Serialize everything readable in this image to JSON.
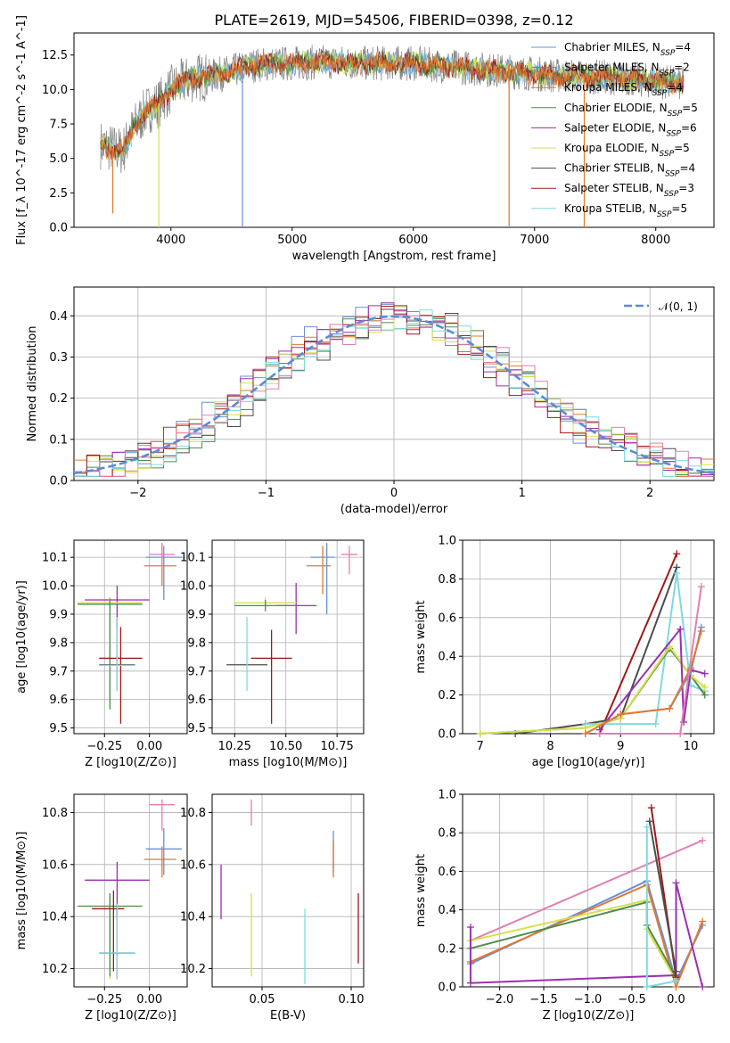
{
  "title": "PLATE=2619, MJD=54506, FIBERID=0398, z=0.12",
  "colors": {
    "chabrier_miles": "#6a8fd8",
    "salpeter_miles": "#808080",
    "kroupa_miles": "#e07a2e",
    "chabrier_elodie": "#4f8c4f",
    "salpeter_elodie": "#9b2fb0",
    "kroupa_elodie": "#d6e04a",
    "chabrier_stelib": "#4d4d4d",
    "salpeter_stelib": "#a01818",
    "kroupa_stelib": "#7ddbe0",
    "pink": "#e080b0",
    "gauss": "#5b8bd6"
  },
  "legend": [
    {
      "label": "Chabrier MILES, N_SSP=4",
      "color_key": "chabrier_miles"
    },
    {
      "label": "Salpeter MILES, N_SSP=2",
      "color_key": "salpeter_miles"
    },
    {
      "label": "Kroupa MILES, N_SSP=4",
      "color_key": "kroupa_miles"
    },
    {
      "label": "Chabrier ELODIE, N_SSP=5",
      "color_key": "chabrier_elodie"
    },
    {
      "label": "Salpeter ELODIE, N_SSP=6",
      "color_key": "salpeter_elodie"
    },
    {
      "label": "Kroupa ELODIE, N_SSP=5",
      "color_key": "kroupa_elodie"
    },
    {
      "label": "Chabrier STELIB, N_SSP=4",
      "color_key": "chabrier_stelib"
    },
    {
      "label": "Salpeter STELIB, N_SSP=3",
      "color_key": "salpeter_stelib"
    },
    {
      "label": "Kroupa STELIB, N_SSP=5",
      "color_key": "kroupa_stelib"
    }
  ],
  "chart_data": [
    {
      "id": "spectrum",
      "type": "line",
      "title": "PLATE=2619, MJD=54506, FIBERID=0398, z=0.12",
      "xlabel": "wavelength [Angstrom, rest frame]",
      "ylabel": "Flux [f_λ 10^-17 erg cm^-2 s^-1 A^-1]",
      "xlim": [
        3200,
        8480
      ],
      "ylim": [
        0,
        14.1
      ],
      "xticks": [
        4000,
        5000,
        6000,
        7000,
        8000
      ],
      "yticks": [
        0.0,
        2.5,
        5.0,
        7.5,
        10.0,
        12.5
      ],
      "continuum": {
        "x": [
          3420,
          3600,
          3700,
          3800,
          3900,
          4000,
          4100,
          4200,
          4300,
          4500,
          4700,
          5000,
          5300,
          5600,
          6000,
          6400,
          6800,
          7200,
          7600,
          8000,
          8230
        ],
        "y": [
          6.0,
          5.5,
          7.3,
          8.5,
          9.0,
          10.0,
          10.5,
          10.9,
          10.9,
          11.3,
          11.8,
          11.9,
          12.0,
          11.9,
          11.9,
          11.6,
          11.3,
          11.0,
          10.9,
          10.6,
          10.4
        ]
      },
      "spikes": [
        {
          "x": 3520,
          "y": 1.0
        },
        {
          "x": 3900,
          "y": 0.0
        },
        {
          "x": 4590,
          "y": 0.0
        },
        {
          "x": 6790,
          "y": 0.0
        },
        {
          "x": 7410,
          "y": 0.0
        }
      ]
    },
    {
      "id": "residuals",
      "type": "step",
      "xlabel": "(data-model)/error",
      "ylabel": "Normed distribution",
      "xlim": [
        -2.5,
        2.5
      ],
      "ylim": [
        0,
        0.47
      ],
      "xticks": [
        -2,
        -1,
        0,
        1,
        2
      ],
      "yticks": [
        0.0,
        0.1,
        0.2,
        0.3,
        0.4
      ],
      "gaussian_label": "𝒩(0, 1)",
      "bin_edges_range": [
        -2.5,
        2.5
      ],
      "bins": 50
    },
    {
      "id": "age_vs_Z",
      "type": "errorbar",
      "xlabel": "Z [log10(Z/Z⊙)]",
      "ylabel": "age  [log10(age/yr)]",
      "xlim": [
        -0.42,
        0.21
      ],
      "ylim": [
        9.48,
        10.16
      ],
      "xticks": [
        -0.25,
        0.0
      ],
      "xticklabels": [
        "−0.25",
        "0.00"
      ],
      "yticks": [
        9.5,
        9.6,
        9.7,
        9.8,
        9.9,
        10.0,
        10.1
      ],
      "points": [
        {
          "color_key": "chabrier_miles",
          "x": 0.08,
          "xerr": [
            0.1,
            0.1
          ],
          "y": 10.1,
          "yerr": [
            0.15,
            0.04
          ]
        },
        {
          "color_key": "kroupa_miles",
          "x": 0.07,
          "xerr": [
            0.1,
            0.08
          ],
          "y": 10.07,
          "yerr": [
            0.07,
            0.08
          ]
        },
        {
          "color_key": "pink",
          "x": 0.07,
          "xerr": [
            0.07,
            0.07
          ],
          "y": 10.11,
          "yerr": [
            0.05,
            0.04
          ]
        },
        {
          "color_key": "salpeter_elodie",
          "x": -0.18,
          "xerr": [
            0.18,
            0.18
          ],
          "y": 9.95,
          "yerr": [
            0.1,
            0.05
          ]
        },
        {
          "color_key": "kroupa_elodie",
          "x": -0.22,
          "xerr": [
            0.18,
            0.18
          ],
          "y": 9.94,
          "yerr": [
            0.34,
            0.02
          ]
        },
        {
          "color_key": "chabrier_elodie",
          "x": -0.22,
          "xerr": [
            0.18,
            0.18
          ],
          "y": 9.935,
          "yerr": [
            0.37,
            0.02
          ]
        },
        {
          "color_key": "salpeter_stelib",
          "x": -0.16,
          "xerr": [
            0.12,
            0.12
          ],
          "y": 9.745,
          "yerr": [
            0.23,
            0.11
          ]
        },
        {
          "color_key": "chabrier_stelib",
          "x": -0.18,
          "xerr": [
            0.1,
            0.1
          ],
          "y": 9.722,
          "yerr": [
            0.09,
            0.17
          ]
        },
        {
          "color_key": "kroupa_stelib",
          "x": -0.18,
          "xerr": [
            0.1,
            0.1
          ],
          "y": 9.72,
          "yerr": [
            0.09,
            0.17
          ]
        }
      ]
    },
    {
      "id": "age_vs_mass",
      "type": "errorbar",
      "xlabel": "mass [log10(M/M⊙)]",
      "ylabel": "",
      "xlim": [
        10.14,
        10.88
      ],
      "ylim": [
        9.48,
        10.16
      ],
      "xticks": [
        10.25,
        10.5,
        10.75
      ],
      "xticklabels": [
        "10.25",
        "10.50",
        "10.75"
      ],
      "yticks": [
        9.5,
        9.6,
        9.7,
        9.8,
        9.9,
        10.0,
        10.1
      ],
      "points": [
        {
          "color_key": "chabrier_miles",
          "x": 10.7,
          "xerr": [
            0.08,
            0.04
          ],
          "y": 10.1,
          "yerr": [
            0.2,
            0.05
          ]
        },
        {
          "color_key": "kroupa_miles",
          "x": 10.68,
          "xerr": [
            0.08,
            0.04
          ],
          "y": 10.07,
          "yerr": [
            0.1,
            0.07
          ]
        },
        {
          "color_key": "pink",
          "x": 10.81,
          "xerr": [
            0.04,
            0.04
          ],
          "y": 10.11,
          "yerr": [
            0.07,
            0.03
          ]
        },
        {
          "color_key": "salpeter_elodie",
          "x": 10.55,
          "xerr": [
            0.1,
            0.1
          ],
          "y": 9.93,
          "yerr": [
            0.1,
            0.08
          ]
        },
        {
          "color_key": "kroupa_elodie",
          "x": 10.4,
          "xerr": [
            0.15,
            0.15
          ],
          "y": 9.94,
          "yerr": [
            0.02,
            0.02
          ]
        },
        {
          "color_key": "chabrier_elodie",
          "x": 10.4,
          "xerr": [
            0.15,
            0.15
          ],
          "y": 9.93,
          "yerr": [
            0.02,
            0.02
          ]
        },
        {
          "color_key": "salpeter_stelib",
          "x": 10.43,
          "xerr": [
            0.1,
            0.1
          ],
          "y": 9.745,
          "yerr": [
            0.23,
            0.1
          ]
        },
        {
          "color_key": "chabrier_stelib",
          "x": 10.31,
          "xerr": [
            0.1,
            0.1
          ],
          "y": 9.722,
          "yerr": [
            0.0,
            0.0
          ]
        },
        {
          "color_key": "kroupa_stelib",
          "x": 10.31,
          "xerr": [
            0.0,
            0.0
          ],
          "y": 9.72,
          "yerr": [
            0.09,
            0.17
          ]
        },
        {
          "color_key": "salpeter_stelib",
          "x": 10.44,
          "xerr": [
            0.0,
            0.0
          ],
          "y": 9.75,
          "yerr": [
            0.0,
            0.0
          ]
        }
      ]
    },
    {
      "id": "mass_weight_vs_age",
      "type": "line",
      "xlabel": "age  [log10(age/yr)]",
      "ylabel": "mass weight",
      "xlim": [
        6.75,
        10.33
      ],
      "ylim": [
        0,
        1.0
      ],
      "xticks": [
        7,
        8,
        9,
        10
      ],
      "yticks": [
        0.0,
        0.2,
        0.4,
        0.6,
        0.8,
        1.0
      ],
      "series": [
        {
          "color_key": "salpeter_stelib",
          "x": [
            8.7,
            9.8
          ],
          "y": [
            0.0,
            0.93
          ]
        },
        {
          "color_key": "chabrier_stelib",
          "x": [
            7.5,
            8.5,
            9.0,
            9.8
          ],
          "y": [
            0.0,
            0.05,
            0.08,
            0.86
          ]
        },
        {
          "color_key": "kroupa_stelib",
          "x": [
            8.5,
            9.5,
            9.8,
            10.0,
            10.2
          ],
          "y": [
            0.05,
            0.05,
            0.83,
            0.25,
            0.22
          ]
        },
        {
          "color_key": "chabrier_elodie",
          "x": [
            7.0,
            8.5,
            9.0,
            9.7,
            10.0,
            10.2
          ],
          "y": [
            0.0,
            0.03,
            0.08,
            0.44,
            0.3,
            0.2
          ]
        },
        {
          "color_key": "kroupa_elodie",
          "x": [
            7.0,
            8.5,
            9.0,
            9.7,
            10.0,
            10.2
          ],
          "y": [
            0.0,
            0.03,
            0.08,
            0.45,
            0.3,
            0.24
          ]
        },
        {
          "color_key": "salpeter_elodie",
          "x": [
            8.7,
            9.85,
            9.9,
            10.0,
            10.2
          ],
          "y": [
            0.02,
            0.54,
            0.06,
            0.33,
            0.31
          ]
        },
        {
          "color_key": "chabrier_miles",
          "x": [
            8.5,
            9.0,
            9.7,
            10.0,
            10.15
          ],
          "y": [
            0.0,
            0.1,
            0.13,
            0.32,
            0.55
          ]
        },
        {
          "color_key": "kroupa_miles",
          "x": [
            8.5,
            9.0,
            9.7,
            10.0,
            10.15
          ],
          "y": [
            0.0,
            0.1,
            0.13,
            0.34,
            0.53
          ]
        },
        {
          "color_key": "pink",
          "x": [
            8.7,
            9.85,
            10.15
          ],
          "y": [
            0.0,
            0.0,
            0.76
          ]
        }
      ]
    },
    {
      "id": "mass_vs_Z",
      "type": "errorbar",
      "xlabel": "Z [log10(Z/Z⊙)]",
      "ylabel": "mass [log10(M/M⊙)]",
      "xlim": [
        -0.42,
        0.21
      ],
      "ylim": [
        10.13,
        10.87
      ],
      "xticks": [
        -0.25,
        0.0
      ],
      "xticklabels": [
        "−0.25",
        "0.00"
      ],
      "yticks": [
        10.2,
        10.4,
        10.6,
        10.8
      ],
      "points": [
        {
          "color_key": "pink",
          "x": 0.07,
          "xerr": [
            0.07,
            0.07
          ],
          "y": 10.83,
          "yerr": [
            0.1,
            0.02
          ]
        },
        {
          "color_key": "chabrier_miles",
          "x": 0.08,
          "xerr": [
            0.1,
            0.1
          ],
          "y": 10.66,
          "yerr": [
            0.1,
            0.08
          ]
        },
        {
          "color_key": "kroupa_miles",
          "x": 0.07,
          "xerr": [
            0.1,
            0.08
          ],
          "y": 10.62,
          "yerr": [
            0.07,
            0.05
          ]
        },
        {
          "color_key": "salpeter_elodie",
          "x": -0.18,
          "xerr": [
            0.18,
            0.18
          ],
          "y": 10.54,
          "yerr": [
            0.14,
            0.07
          ]
        },
        {
          "color_key": "kroupa_elodie",
          "x": -0.22,
          "xerr": [
            0.18,
            0.18
          ],
          "y": 10.44,
          "yerr": [
            0.28,
            0.05
          ]
        },
        {
          "color_key": "chabrier_elodie",
          "x": -0.22,
          "xerr": [
            0.18,
            0.18
          ],
          "y": 10.44,
          "yerr": [
            0.27,
            0.05
          ]
        },
        {
          "color_key": "salpeter_stelib",
          "x": -0.2,
          "xerr": [
            0.12,
            0.06
          ],
          "y": 10.43,
          "yerr": [
            0.24,
            0.07
          ]
        },
        {
          "color_key": "chabrier_stelib",
          "x": -0.18,
          "xerr": [
            0.1,
            0.1
          ],
          "y": 10.26,
          "yerr": [
            0.1,
            0.19
          ]
        },
        {
          "color_key": "kroupa_stelib",
          "x": -0.18,
          "xerr": [
            0.1,
            0.1
          ],
          "y": 10.26,
          "yerr": [
            0.1,
            0.19
          ]
        }
      ]
    },
    {
      "id": "mass_vs_EBV",
      "type": "errorbar",
      "xlabel": "E(B-V)",
      "ylabel": "",
      "xlim": [
        0.022,
        0.107
      ],
      "ylim": [
        10.13,
        10.87
      ],
      "xticks": [
        0.05,
        0.1
      ],
      "xticklabels": [
        "0.05",
        "0.10"
      ],
      "yticks": [
        10.2,
        10.4,
        10.6,
        10.8
      ],
      "points": [
        {
          "color_key": "pink",
          "x": 0.044,
          "xerr": [
            0,
            0
          ],
          "y": 10.8,
          "yerr": [
            0.05,
            0.05
          ]
        },
        {
          "color_key": "salpeter_elodie",
          "x": 0.027,
          "xerr": [
            0,
            0
          ],
          "y": 10.49,
          "yerr": [
            0.1,
            0.11
          ]
        },
        {
          "color_key": "kroupa_elodie",
          "x": 0.044,
          "xerr": [
            0,
            0
          ],
          "y": 10.33,
          "yerr": [
            0.16,
            0.16
          ]
        },
        {
          "color_key": "kroupa_stelib",
          "x": 0.074,
          "xerr": [
            0,
            0
          ],
          "y": 10.26,
          "yerr": [
            0.12,
            0.17
          ]
        },
        {
          "color_key": "chabrier_miles",
          "x": 0.09,
          "xerr": [
            0,
            0
          ],
          "y": 10.65,
          "yerr": [
            0.08,
            0.08
          ]
        },
        {
          "color_key": "kroupa_miles",
          "x": 0.09,
          "xerr": [
            0,
            0
          ],
          "y": 10.62,
          "yerr": [
            0.07,
            0.07
          ]
        },
        {
          "color_key": "salpeter_stelib",
          "x": 0.104,
          "xerr": [
            0,
            0
          ],
          "y": 10.35,
          "yerr": [
            0.13,
            0.14
          ]
        }
      ]
    },
    {
      "id": "mass_weight_vs_Z",
      "type": "line",
      "xlabel": "Z [log10(Z/Z⊙)]",
      "ylabel": "mass weight",
      "xlim": [
        -2.42,
        0.43
      ],
      "ylim": [
        0,
        1.0
      ],
      "xticks": [
        -2.0,
        -1.5,
        -1.0,
        -0.5,
        0.0
      ],
      "xticklabels": [
        "−2.0",
        "−1.5",
        "−1.0",
        "−0.5",
        "0.0"
      ],
      "yticks": [
        0.0,
        0.2,
        0.4,
        0.6,
        0.8,
        1.0
      ],
      "series": [
        {
          "color_key": "pink",
          "x": [
            -2.33,
            0.3
          ],
          "y": [
            0.24,
            0.76
          ]
        },
        {
          "color_key": "chabrier_miles",
          "x": [
            -2.33,
            -0.33,
            0.0,
            0.3
          ],
          "y": [
            0.12,
            0.55,
            0.03,
            0.32
          ]
        },
        {
          "color_key": "kroupa_miles",
          "x": [
            -2.33,
            -0.33,
            0.0,
            0.3
          ],
          "y": [
            0.13,
            0.53,
            0.0,
            0.34
          ]
        },
        {
          "color_key": "kroupa_elodie",
          "x": [
            -2.33,
            -0.33,
            -0.33,
            0.0
          ],
          "y": [
            0.24,
            0.45,
            0.3,
            0.03
          ]
        },
        {
          "color_key": "chabrier_elodie",
          "x": [
            -2.33,
            -0.33,
            -0.33,
            0.0
          ],
          "y": [
            0.2,
            0.44,
            0.32,
            0.05
          ]
        },
        {
          "color_key": "salpeter_elodie",
          "x": [
            -2.33,
            -2.33,
            0.0,
            0.0,
            0.3
          ],
          "y": [
            0.31,
            0.02,
            0.06,
            0.54,
            0.0
          ]
        },
        {
          "color_key": "salpeter_stelib",
          "x": [
            -0.28,
            0.0
          ],
          "y": [
            0.93,
            0.05
          ]
        },
        {
          "color_key": "chabrier_stelib",
          "x": [
            -0.3,
            0.0
          ],
          "y": [
            0.86,
            0.08
          ]
        },
        {
          "color_key": "kroupa_stelib",
          "x": [
            -0.33,
            -0.33,
            0.0
          ],
          "y": [
            0.83,
            0.0,
            0.03
          ]
        }
      ]
    }
  ]
}
